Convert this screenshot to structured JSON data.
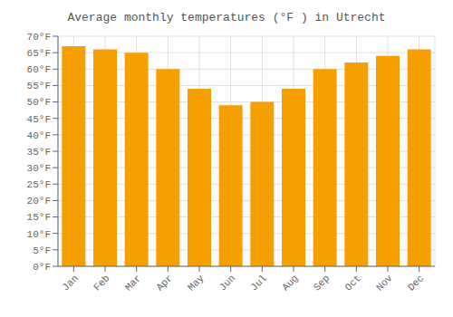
{
  "chart_data": {
    "type": "bar",
    "title": "Average monthly temperatures (°F ) in Utrecht",
    "categories": [
      "Jan",
      "Feb",
      "Mar",
      "Apr",
      "May",
      "Jun",
      "Jul",
      "Aug",
      "Sep",
      "Oct",
      "Nov",
      "Dec"
    ],
    "values": [
      67,
      66,
      65,
      60,
      54,
      49,
      50,
      54,
      60,
      62,
      64,
      66
    ],
    "color": "#F5A000",
    "ylim": [
      0,
      70
    ],
    "yticks": [
      {
        "value": 0,
        "label": "0°F"
      },
      {
        "value": 5,
        "label": "5°F"
      },
      {
        "value": 10,
        "label": "10°F"
      },
      {
        "value": 15,
        "label": "15°F"
      },
      {
        "value": 20,
        "label": "20°F"
      },
      {
        "value": 25,
        "label": "25°F"
      },
      {
        "value": 30,
        "label": "30°F"
      },
      {
        "value": 35,
        "label": "35°F"
      },
      {
        "value": 40,
        "label": "40°F"
      },
      {
        "value": 45,
        "label": "45°F"
      },
      {
        "value": 50,
        "label": "50°F"
      },
      {
        "value": 55,
        "label": "55°F"
      },
      {
        "value": 60,
        "label": "60°F"
      },
      {
        "value": 65,
        "label": "65°F"
      },
      {
        "value": 70,
        "label": "70°F"
      }
    ],
    "grid": true
  }
}
